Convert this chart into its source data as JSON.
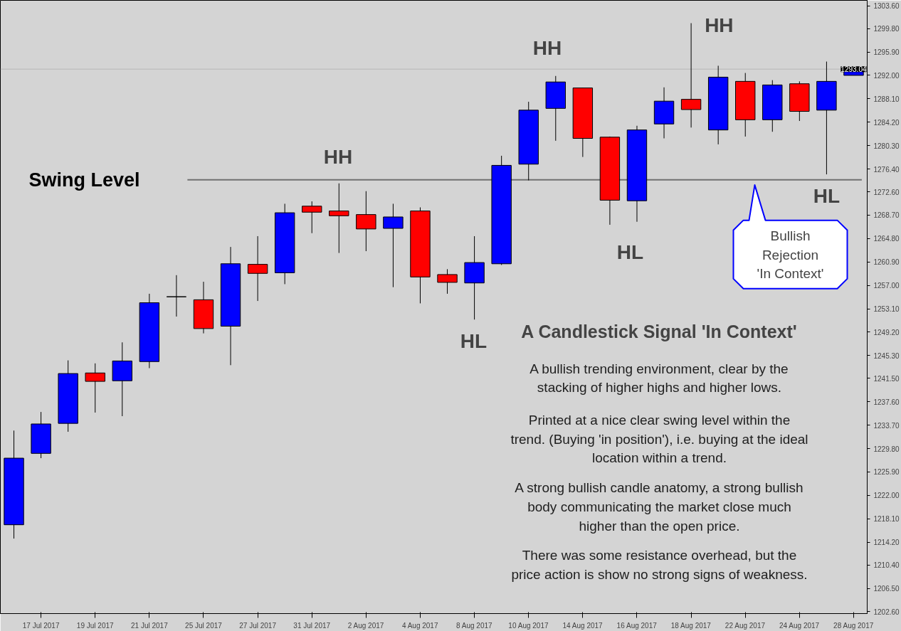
{
  "chart_data": {
    "type": "candlestick",
    "categories": [
      null,
      "17 Jul 2017",
      null,
      "19 Jul 2017",
      null,
      "21 Jul 2017",
      null,
      "25 Jul 2017",
      null,
      "27 Jul 2017",
      null,
      "31 Jul 2017",
      null,
      "2 Aug 2017",
      null,
      "4 Aug 2017",
      null,
      "8 Aug 2017",
      null,
      "10 Aug 2017",
      null,
      "14 Aug 2017",
      null,
      "16 Aug 2017",
      null,
      "18 Aug 2017",
      null,
      "22 Aug 2017",
      null,
      "24 Aug 2017",
      null,
      "28 Aug 2017"
    ],
    "ohlc": [
      [
        1217.1,
        1232.8,
        1214.8,
        1228.2
      ],
      [
        1229.0,
        1235.9,
        1228.2,
        1233.9
      ],
      [
        1234.0,
        1244.5,
        1232.6,
        1242.3
      ],
      [
        1242.4,
        1244.0,
        1235.8,
        1241.0
      ],
      [
        1241.1,
        1247.5,
        1235.2,
        1244.4
      ],
      [
        1244.3,
        1255.6,
        1243.2,
        1254.1
      ],
      [
        1255.1,
        1258.7,
        1251.8,
        1255.1
      ],
      [
        1254.6,
        1257.6,
        1249.0,
        1249.8
      ],
      [
        1250.2,
        1263.4,
        1243.7,
        1260.6
      ],
      [
        1260.5,
        1265.2,
        1254.4,
        1259.0
      ],
      [
        1259.1,
        1270.6,
        1257.2,
        1269.1
      ],
      [
        1270.2,
        1271.0,
        1265.7,
        1269.2
      ],
      [
        1269.4,
        1274.0,
        1262.4,
        1268.6
      ],
      [
        1268.8,
        1272.7,
        1262.7,
        1266.4
      ],
      [
        1266.5,
        1270.6,
        1256.7,
        1268.4
      ],
      [
        1269.4,
        1270.0,
        1254.0,
        1258.4
      ],
      [
        1258.8,
        1259.7,
        1255.6,
        1257.5
      ],
      [
        1257.4,
        1265.2,
        1251.3,
        1260.8
      ],
      [
        1260.6,
        1278.6,
        1260.4,
        1277.0
      ],
      [
        1277.2,
        1287.6,
        1274.5,
        1286.2
      ],
      [
        1286.5,
        1291.9,
        1281.1,
        1290.9
      ],
      [
        1289.9,
        1289.9,
        1278.4,
        1281.5
      ],
      [
        1281.7,
        1281.8,
        1267.1,
        1271.2
      ],
      [
        1271.1,
        1283.6,
        1267.6,
        1282.9
      ],
      [
        1283.9,
        1290.0,
        1281.5,
        1287.7
      ],
      [
        1288.0,
        1300.7,
        1283.3,
        1286.3
      ],
      [
        1282.9,
        1293.6,
        1280.5,
        1291.7
      ],
      [
        1291.0,
        1292.4,
        1281.8,
        1284.6
      ],
      [
        1284.6,
        1291.2,
        1282.6,
        1290.4
      ],
      [
        1290.6,
        1291.0,
        1284.4,
        1286.0
      ],
      [
        1286.2,
        1294.3,
        1275.5,
        1291.0
      ],
      [
        1292.0,
        1293.04,
        1292.0,
        1293.04
      ]
    ],
    "colors": [
      "#0000ff",
      "#0000ff",
      "#0000ff",
      "#ff0000",
      "#0000ff",
      "#0000ff",
      "#000000",
      "#ff0000",
      "#0000ff",
      "#ff0000",
      "#0000ff",
      "#ff0000",
      "#ff0000",
      "#ff0000",
      "#0000ff",
      "#ff0000",
      "#ff0000",
      "#0000ff",
      "#0000ff",
      "#0000ff",
      "#0000ff",
      "#ff0000",
      "#ff0000",
      "#0000ff",
      "#0000ff",
      "#ff0000",
      "#0000ff",
      "#ff0000",
      "#0000ff",
      "#ff0000",
      "#0000ff",
      "#0000ff"
    ],
    "ylim": [
      1202.3,
      1304.5
    ],
    "yticks": [
      {
        "value": 1303.6,
        "label": "1303.60"
      },
      {
        "value": 1299.8,
        "label": "1299.80"
      },
      {
        "value": 1295.9,
        "label": "1295.90"
      },
      {
        "value": 1292.0,
        "label": "1292.00"
      },
      {
        "value": 1288.1,
        "label": "1288.10"
      },
      {
        "value": 1284.2,
        "label": "1284.20"
      },
      {
        "value": 1280.3,
        "label": "1280.30"
      },
      {
        "value": 1276.4,
        "label": "1276.40"
      },
      {
        "value": 1272.6,
        "label": "1272.60"
      },
      {
        "value": 1268.7,
        "label": "1268.70"
      },
      {
        "value": 1264.8,
        "label": "1264.80"
      },
      {
        "value": 1260.9,
        "label": "1260.90"
      },
      {
        "value": 1257.0,
        "label": "1257.00"
      },
      {
        "value": 1253.1,
        "label": "1253.10"
      },
      {
        "value": 1249.2,
        "label": "1249.20"
      },
      {
        "value": 1245.3,
        "label": "1245.30"
      },
      {
        "value": 1241.5,
        "label": "1241.50"
      },
      {
        "value": 1237.6,
        "label": "1237.60"
      },
      {
        "value": 1233.7,
        "label": "1233.70"
      },
      {
        "value": 1229.8,
        "label": "1229.80"
      },
      {
        "value": 1225.9,
        "label": "1225.90"
      },
      {
        "value": 1222.0,
        "label": "1222.00"
      },
      {
        "value": 1218.1,
        "label": "1218.10"
      },
      {
        "value": 1214.2,
        "label": "1214.20"
      },
      {
        "value": 1210.4,
        "label": "1210.40"
      },
      {
        "value": 1206.5,
        "label": "1206.50"
      },
      {
        "value": 1202.6,
        "label": "1202.60"
      }
    ],
    "ref_lines": [
      {
        "axis": "y",
        "value": 1274.6,
        "label": "Swing Level",
        "color": "#707070"
      },
      {
        "axis": "y",
        "value": 1293.04,
        "label": "1293.04",
        "color": "#b8b8b8"
      }
    ],
    "annotations": [
      "HH",
      "HH",
      "HH",
      "HL",
      "HL",
      "HL",
      "Bullish\nRejection\n'In Context'",
      "A Candlestick Signal 'In Context'",
      "A bullish trending environment, clear by the\nstacking of higher highs and higher lows.",
      "Printed at a nice clear swing level within the\ntrend. (Buying 'in position'), i.e. buying at the ideal\nlocation within a trend.",
      "A strong bullish candle anatomy, a strong bullish\nbody communicating the market close much\nhigher than the open price.",
      "There was some resistance overhead, but the\nprice action is show no strong signs of weakness."
    ],
    "grid": false
  }
}
